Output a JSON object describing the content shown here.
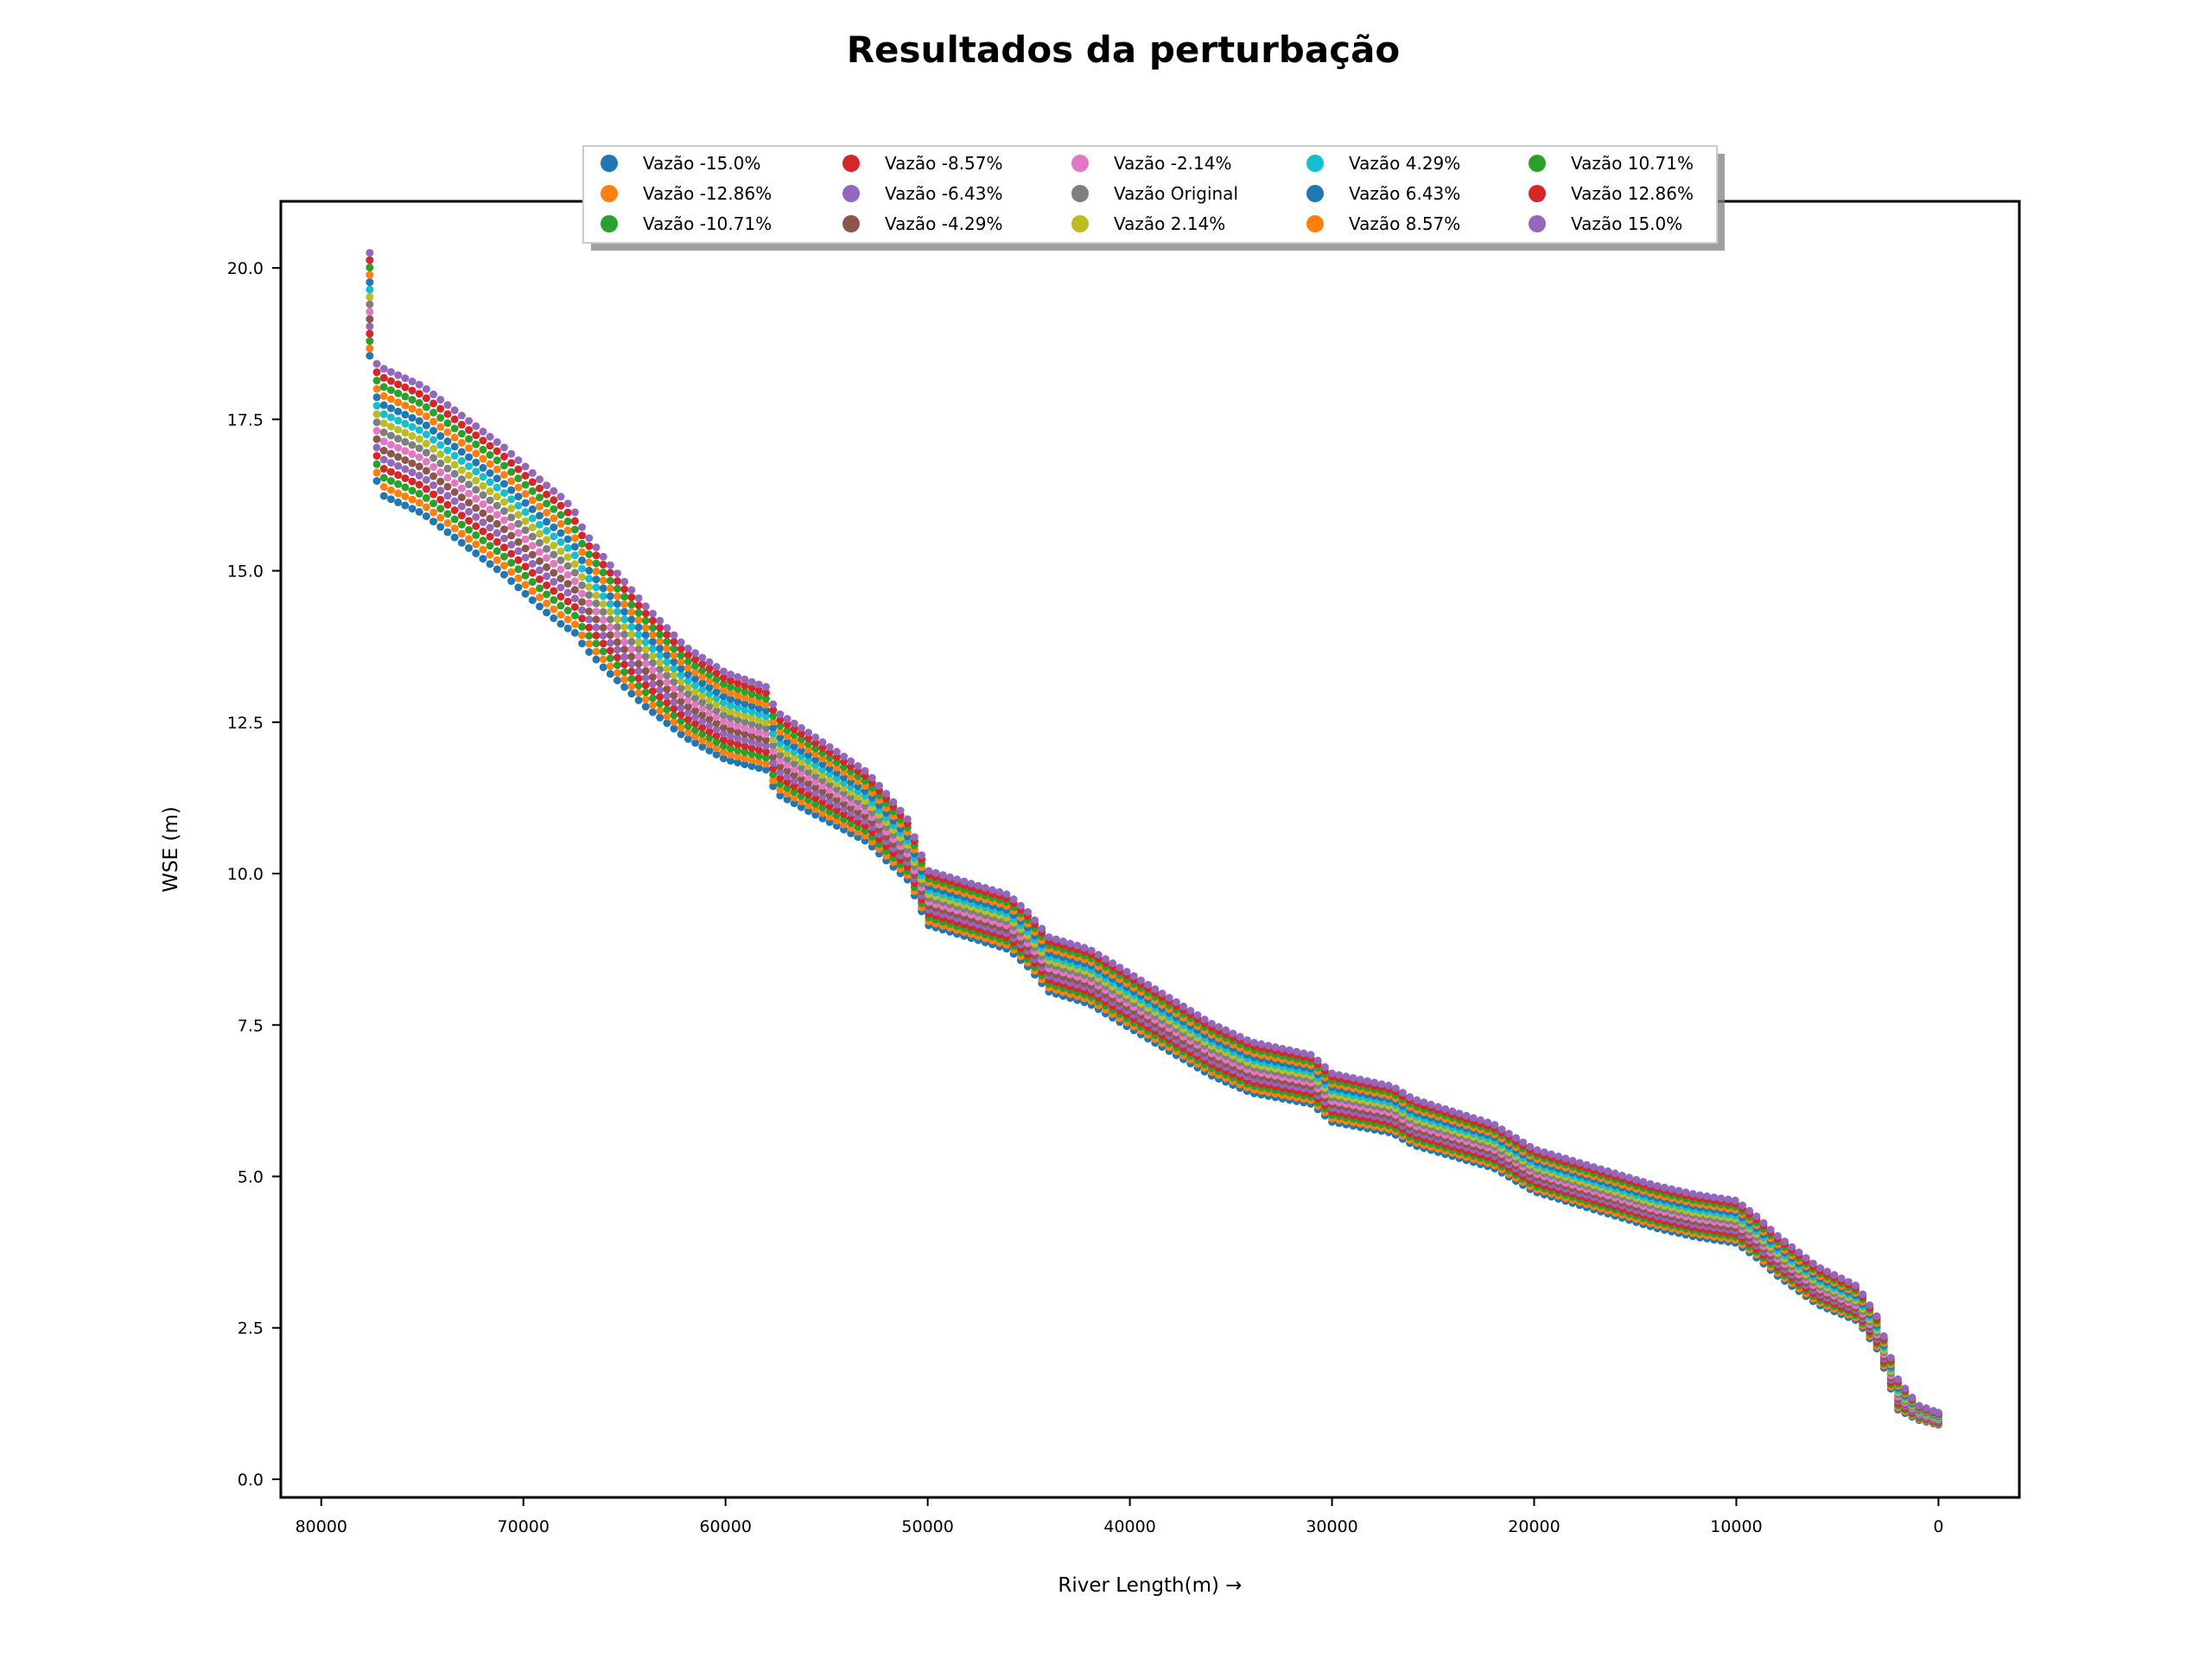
{
  "chart_data": {
    "type": "scatter",
    "title": "Resultados da perturbação",
    "xlabel": "River Length(m) →",
    "ylabel": "WSE (m)",
    "xlim": [
      82000,
      -4000
    ],
    "ylim": [
      -0.3,
      21.1
    ],
    "x_inverted": true,
    "grid": false,
    "legend_position": "top-center",
    "legend_columns": 5,
    "x_ticks": [
      {
        "value": 80000,
        "label": "80000"
      },
      {
        "value": 70000,
        "label": "70000"
      },
      {
        "value": 60000,
        "label": "60000"
      },
      {
        "value": 50000,
        "label": "50000"
      },
      {
        "value": 40000,
        "label": "40000"
      },
      {
        "value": 30000,
        "label": "30000"
      },
      {
        "value": 20000,
        "label": "20000"
      },
      {
        "value": 10000,
        "label": "10000"
      },
      {
        "value": 0,
        "label": "0"
      }
    ],
    "y_ticks": [
      {
        "value": 0.0,
        "label": "0.0"
      },
      {
        "value": 2.5,
        "label": "2.5"
      },
      {
        "value": 5.0,
        "label": "5.0"
      },
      {
        "value": 7.5,
        "label": "7.5"
      },
      {
        "value": 10.0,
        "label": "10.0"
      },
      {
        "value": 12.5,
        "label": "12.5"
      },
      {
        "value": 15.0,
        "label": "15.0"
      },
      {
        "value": 17.5,
        "label": "17.5"
      },
      {
        "value": 20.0,
        "label": "20.0"
      }
    ],
    "original_profile": {
      "x": [
        77600,
        77500,
        77000,
        75000,
        73000,
        71000,
        69000,
        67500,
        67000,
        66000,
        64000,
        62000,
        60000,
        58000,
        57500,
        55000,
        53000,
        51000,
        50000,
        48000,
        46000,
        45000,
        44000,
        42000,
        40000,
        38000,
        36000,
        34000,
        31000,
        30000,
        27000,
        26000,
        24000,
        22000,
        20000,
        18000,
        16000,
        14000,
        12000,
        10000,
        9000,
        8000,
        6000,
        4000,
        3000,
        2000,
        1000,
        0
      ],
      "y": [
        19.4,
        17.6,
        17.3,
        17.0,
        16.5,
        16.0,
        15.4,
        15.0,
        14.7,
        14.3,
        13.6,
        13.0,
        12.6,
        12.4,
        12.0,
        11.5,
        11.1,
        10.4,
        9.6,
        9.4,
        9.2,
        8.9,
        8.5,
        8.3,
        7.9,
        7.5,
        7.1,
        6.8,
        6.6,
        6.3,
        6.1,
        5.9,
        5.7,
        5.5,
        5.1,
        4.9,
        4.7,
        4.5,
        4.35,
        4.25,
        4.0,
        3.7,
        3.2,
        2.9,
        2.4,
        1.4,
        1.1,
        1.0
      ]
    },
    "spread_scale": {
      "x": [
        77600,
        77000,
        72000,
        68000,
        67000,
        62000,
        56000,
        52000,
        50000,
        40000,
        30000,
        20000,
        10000,
        5000,
        2000,
        1000,
        0
      ],
      "half_range": [
        0.85,
        1.05,
        1.05,
        1.05,
        0.95,
        0.75,
        0.65,
        0.55,
        0.45,
        0.45,
        0.4,
        0.35,
        0.35,
        0.3,
        0.25,
        0.12,
        0.1
      ]
    },
    "series": [
      {
        "name": "Vazão -15.0%",
        "perturbation": -15.0,
        "color": "#1f77b4"
      },
      {
        "name": "Vazão -12.86%",
        "perturbation": -12.86,
        "color": "#ff7f0e"
      },
      {
        "name": "Vazão -10.71%",
        "perturbation": -10.71,
        "color": "#2ca02c"
      },
      {
        "name": "Vazão -8.57%",
        "perturbation": -8.57,
        "color": "#d62728"
      },
      {
        "name": "Vazão -6.43%",
        "perturbation": -6.43,
        "color": "#9467bd"
      },
      {
        "name": "Vazão -4.29%",
        "perturbation": -4.29,
        "color": "#8c564b"
      },
      {
        "name": "Vazão -2.14%",
        "perturbation": -2.14,
        "color": "#e377c2"
      },
      {
        "name": "Vazão Original",
        "perturbation": 0.0,
        "color": "#7f7f7f"
      },
      {
        "name": "Vazão 2.14%",
        "perturbation": 2.14,
        "color": "#bcbd22"
      },
      {
        "name": "Vazão 4.29%",
        "perturbation": 4.29,
        "color": "#17becf"
      },
      {
        "name": "Vazão 6.43%",
        "perturbation": 6.43,
        "color": "#1f77b4"
      },
      {
        "name": "Vazão 8.57%",
        "perturbation": 8.57,
        "color": "#ff7f0e"
      },
      {
        "name": "Vazão 10.71%",
        "perturbation": 10.71,
        "color": "#2ca02c"
      },
      {
        "name": "Vazão 12.86%",
        "perturbation": 12.86,
        "color": "#d62728"
      },
      {
        "name": "Vazão 15.0%",
        "perturbation": 15.0,
        "color": "#9467bd"
      }
    ]
  }
}
